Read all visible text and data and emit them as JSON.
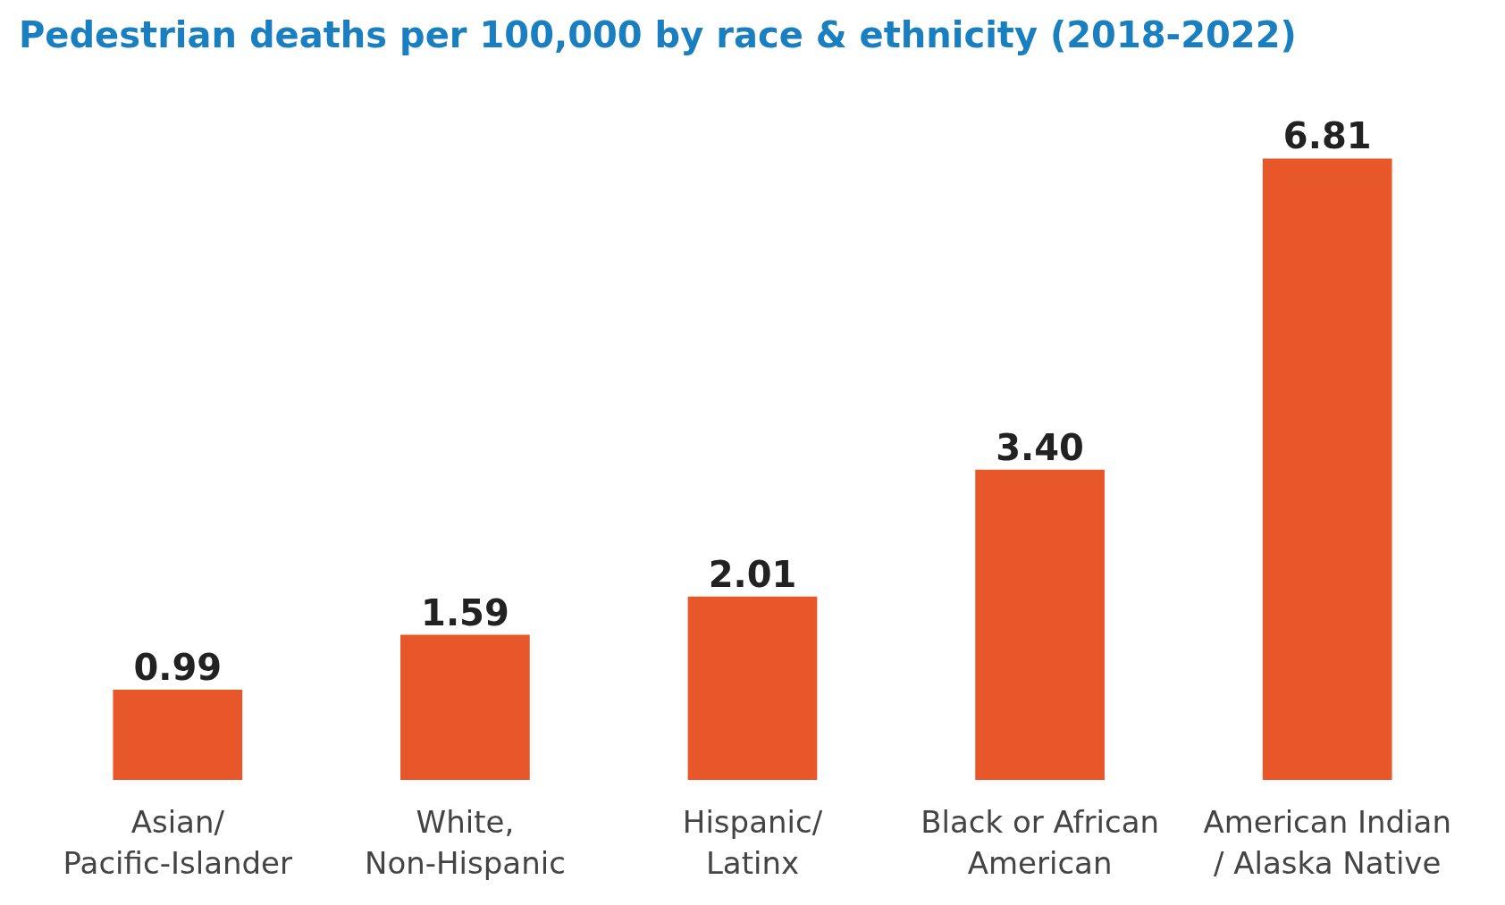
{
  "chart_data": {
    "type": "bar",
    "title": "Pedestrian deaths per 100,000 by race & ethnicity (2018-2022)",
    "categories": [
      "Asian/\nPacific-Islander",
      "White,\nNon-Hispanic",
      "Hispanic/\nLatinx",
      "Black or African\nAmerican",
      "American Indian\n/ Alaska Native"
    ],
    "values": [
      0.99,
      1.59,
      2.01,
      3.4,
      6.81
    ],
    "value_labels": [
      "0.99",
      "1.59",
      "2.01",
      "3.40",
      "6.81"
    ],
    "color": "#e8572a",
    "tick_labels": "x"
  }
}
